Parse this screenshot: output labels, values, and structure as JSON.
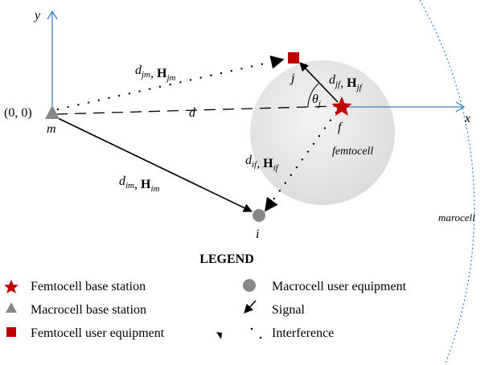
{
  "axes": {
    "y": "y",
    "x": "x",
    "origin": "(0, 0)"
  },
  "nodes": {
    "m": "m",
    "j": "j",
    "f": "f",
    "i": "i"
  },
  "distance": "d",
  "regions": {
    "femtocell": "femtocell",
    "macrocell": "marocell"
  },
  "links": [
    {
      "parts": [
        {
          "text": "d",
          "sub": "jm"
        },
        {
          "text": ", "
        },
        {
          "text": "H",
          "sub": "jm",
          "bold": true
        }
      ]
    },
    {
      "parts": [
        {
          "text": "d",
          "sub": "jf"
        },
        {
          "text": ", "
        },
        {
          "text": "H",
          "sub": "jf",
          "bold": true
        }
      ]
    },
    {
      "parts": [
        {
          "text": "d",
          "sub": "if"
        },
        {
          "text": ", "
        },
        {
          "text": "H",
          "sub": "if",
          "bold": true
        }
      ]
    },
    {
      "parts": [
        {
          "text": "d",
          "sub": "im"
        },
        {
          "text": ", "
        },
        {
          "text": "H",
          "sub": "im",
          "bold": true
        }
      ]
    }
  ],
  "angle": {
    "parts": [
      {
        "text": "θ",
        "sub": "j"
      }
    ]
  },
  "legend": {
    "title": "LEGEND",
    "items": [
      "Femtocell base station",
      "Macrocell user equipment",
      "Macrocell base station",
      "Signal",
      "Femtocell user equipment",
      "Interference"
    ]
  }
}
